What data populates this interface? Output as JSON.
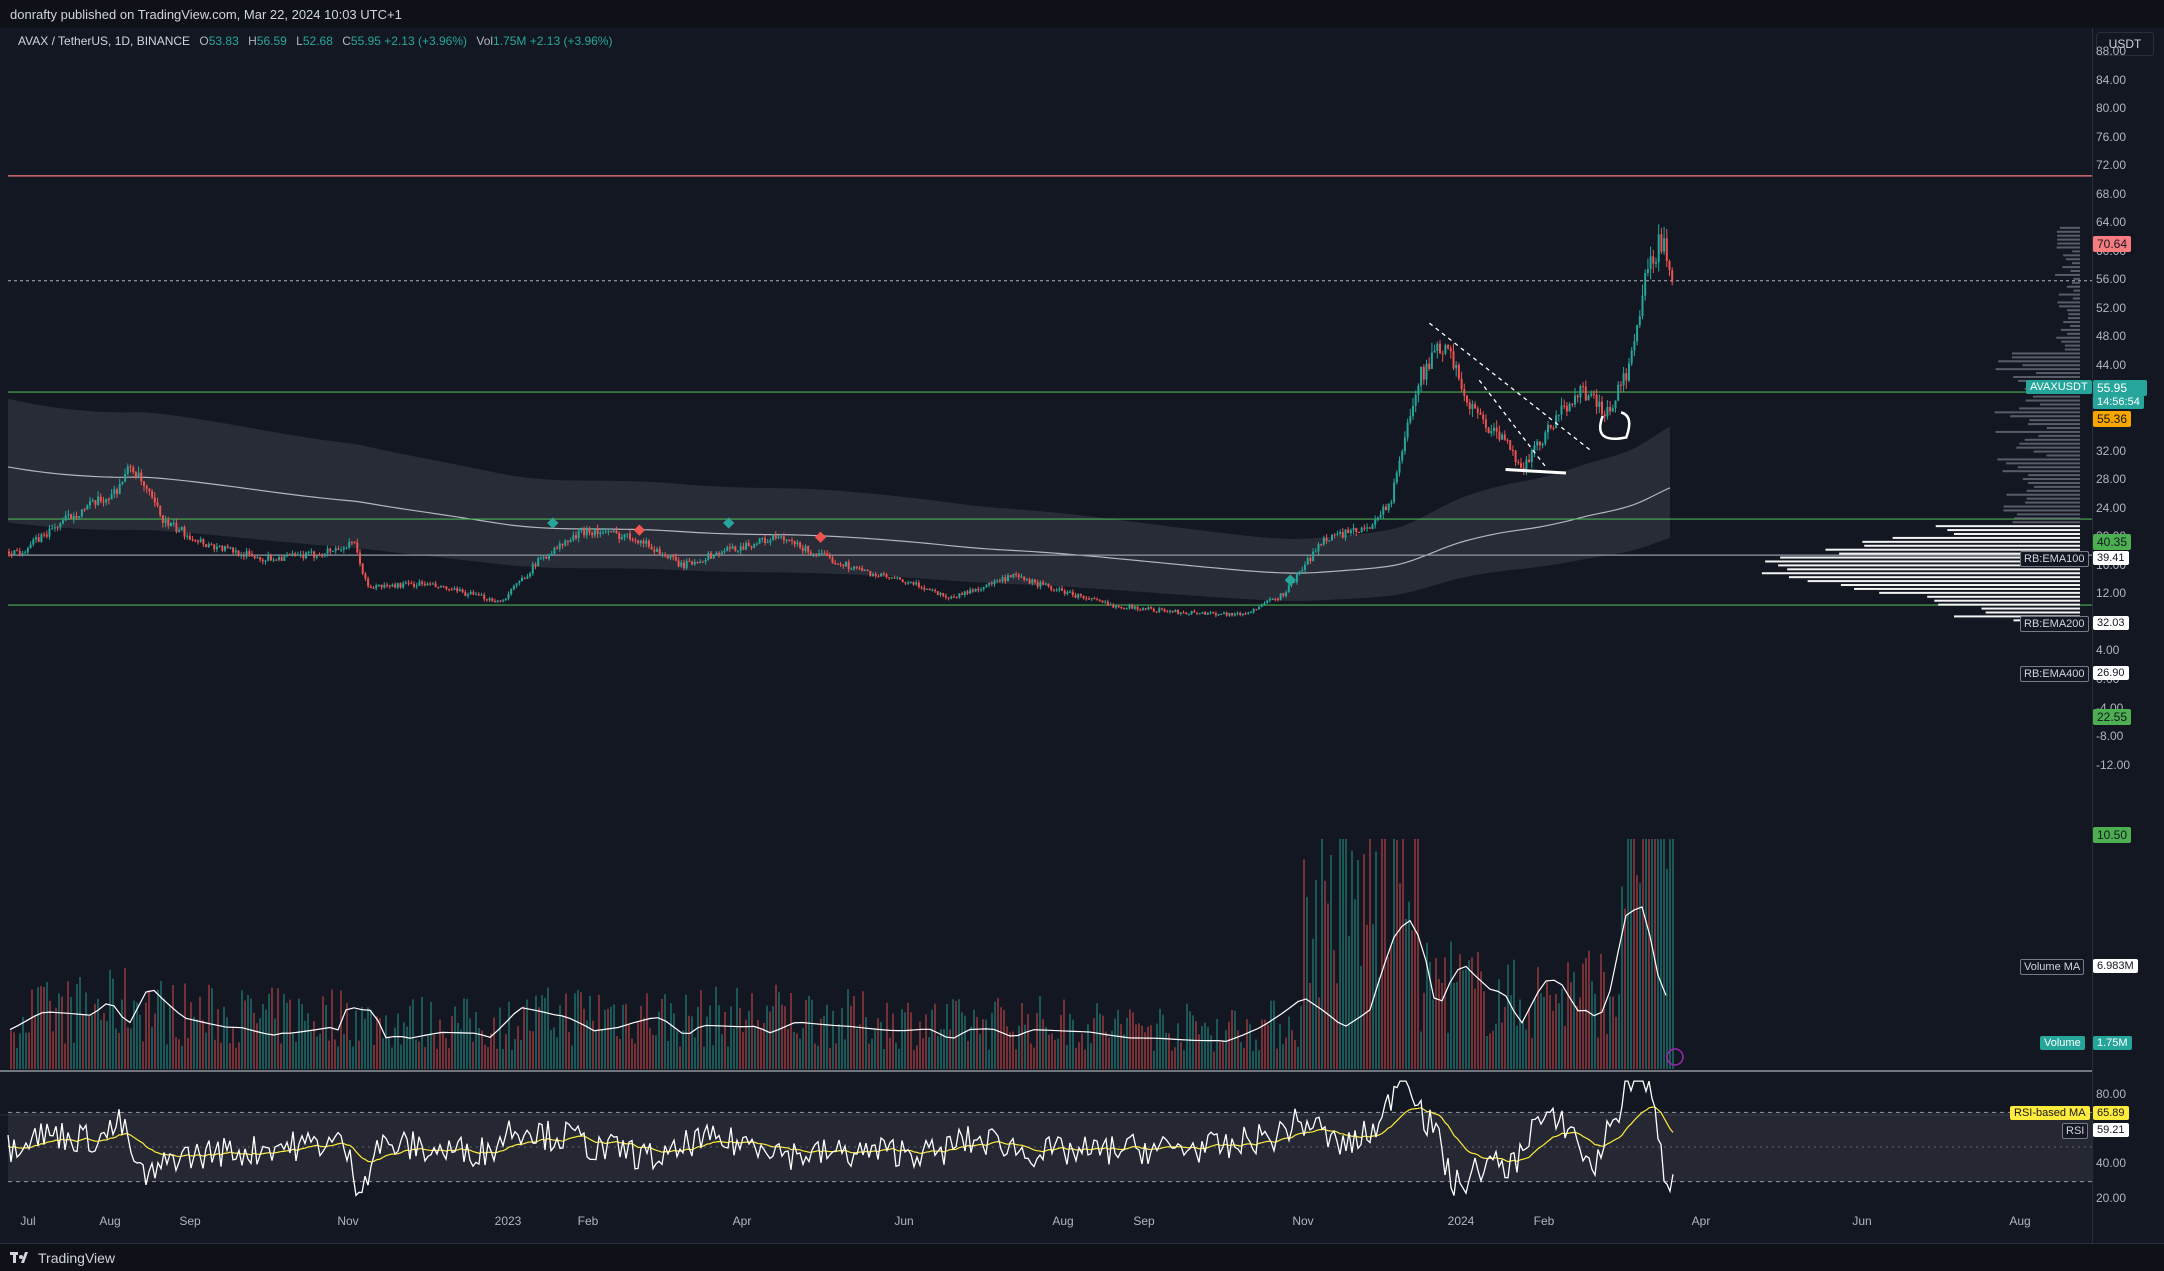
{
  "header": {
    "published": "donrafty published on TradingView.com, Mar 22, 2024 10:03 UTC+1"
  },
  "legend": {
    "symbol": "AVAX / TetherUS, 1D, BINANCE",
    "open_label": "O",
    "open": "53.83",
    "high_label": "H",
    "high": "56.59",
    "low_label": "L",
    "low": "52.68",
    "close_label": "C",
    "close": "55.95",
    "change": "+2.13 (+3.96%)",
    "vol_label": "Vol",
    "vol": "1.75M",
    "vol_change": "+2.13 (+3.96%)"
  },
  "currency": "USDT",
  "footer": {
    "brand": "TradingView"
  },
  "colors": {
    "background": "#131722",
    "up": "#26a69a",
    "down": "#ef5350",
    "support": "#4caf50",
    "resistance": "#f77c80",
    "price": "#26a69a",
    "rsi_ma": "#ffeb3b",
    "rsi": "#ffffff"
  },
  "price_labels": {
    "resistance": "70.64",
    "symbol_name": "AVAXUSDT",
    "last": "55.95",
    "countdown": "14:56:54",
    "prev": "55.36",
    "support1": "40.35",
    "support2": "22.55",
    "support3": "10.50",
    "ema100_name": "RB:EMA100",
    "ema100": "39.41",
    "ema200_name": "RB:EMA200",
    "ema200": "32.03",
    "ema400_name": "RB:EMA400",
    "ema400": "26.90",
    "vol_ma_name": "Volume MA",
    "vol_ma": "6.983M",
    "volume_name": "Volume",
    "volume": "1.75M",
    "rsi_ma_name": "RSI-based MA",
    "rsi_ma": "65.89",
    "rsi_name": "RSI",
    "rsi": "59.21"
  },
  "chart_data": {
    "type": "candlestick",
    "symbol": "AVAXUSDT",
    "timeframe": "1D",
    "y_ticks": [
      "88.00",
      "84.00",
      "80.00",
      "76.00",
      "72.00",
      "68.00",
      "64.00",
      "60.00",
      "56.00",
      "52.00",
      "48.00",
      "44.00",
      "40.00",
      "36.00",
      "32.00",
      "28.00",
      "24.00",
      "20.00",
      "16.00",
      "12.00",
      "8.00",
      "4.00",
      "0.00",
      "-4.00",
      "-8.00",
      "-12.00"
    ],
    "rsi_ticks": [
      "80.00",
      "60.00",
      "40.00",
      "20.00"
    ],
    "x_ticks": [
      "Jul",
      "Aug",
      "Sep",
      "Nov",
      "2023",
      "Feb",
      "Apr",
      "Jun",
      "Aug",
      "Sep",
      "Nov",
      "2024",
      "Feb",
      "Apr",
      "Jun",
      "Aug"
    ],
    "horizontal_levels": [
      70.64,
      40.35,
      22.55,
      17.5,
      10.5
    ],
    "price_path": [
      {
        "d": "2022-07-01",
        "c": 18
      },
      {
        "d": "2022-07-20",
        "c": 23
      },
      {
        "d": "2022-08-05",
        "c": 26
      },
      {
        "d": "2022-08-12",
        "c": 30
      },
      {
        "d": "2022-08-25",
        "c": 22
      },
      {
        "d": "2022-09-10",
        "c": 19
      },
      {
        "d": "2022-10-01",
        "c": 17
      },
      {
        "d": "2022-10-20",
        "c": 17.5
      },
      {
        "d": "2022-11-05",
        "c": 19
      },
      {
        "d": "2022-11-10",
        "c": 13
      },
      {
        "d": "2022-12-01",
        "c": 13.5
      },
      {
        "d": "2022-12-31",
        "c": 11
      },
      {
        "d": "2023-01-15",
        "c": 17
      },
      {
        "d": "2023-02-01",
        "c": 21
      },
      {
        "d": "2023-02-20",
        "c": 20
      },
      {
        "d": "2023-03-10",
        "c": 16
      },
      {
        "d": "2023-03-25",
        "c": 18
      },
      {
        "d": "2023-04-15",
        "c": 20
      },
      {
        "d": "2023-05-01",
        "c": 17.5
      },
      {
        "d": "2023-05-20",
        "c": 15
      },
      {
        "d": "2023-06-10",
        "c": 13
      },
      {
        "d": "2023-06-20",
        "c": 11.5
      },
      {
        "d": "2023-07-14",
        "c": 14.5
      },
      {
        "d": "2023-08-01",
        "c": 12.5
      },
      {
        "d": "2023-08-20",
        "c": 10.5
      },
      {
        "d": "2023-09-15",
        "c": 9.5
      },
      {
        "d": "2023-10-10",
        "c": 9.2
      },
      {
        "d": "2023-10-25",
        "c": 12
      },
      {
        "d": "2023-11-10",
        "c": 20
      },
      {
        "d": "2023-11-25",
        "c": 21
      },
      {
        "d": "2023-12-05",
        "c": 25
      },
      {
        "d": "2023-12-15",
        "c": 42
      },
      {
        "d": "2023-12-25",
        "c": 47
      },
      {
        "d": "2024-01-05",
        "c": 38
      },
      {
        "d": "2024-01-15",
        "c": 34
      },
      {
        "d": "2024-01-25",
        "c": 30
      },
      {
        "d": "2024-02-05",
        "c": 36
      },
      {
        "d": "2024-02-15",
        "c": 41
      },
      {
        "d": "2024-02-25",
        "c": 37
      },
      {
        "d": "2024-03-05",
        "c": 44
      },
      {
        "d": "2024-03-12",
        "c": 58
      },
      {
        "d": "2024-03-18",
        "c": 62
      },
      {
        "d": "2024-03-22",
        "c": 55.95
      }
    ],
    "rsi_ma_last": 65.89,
    "rsi_last": 59.21
  }
}
